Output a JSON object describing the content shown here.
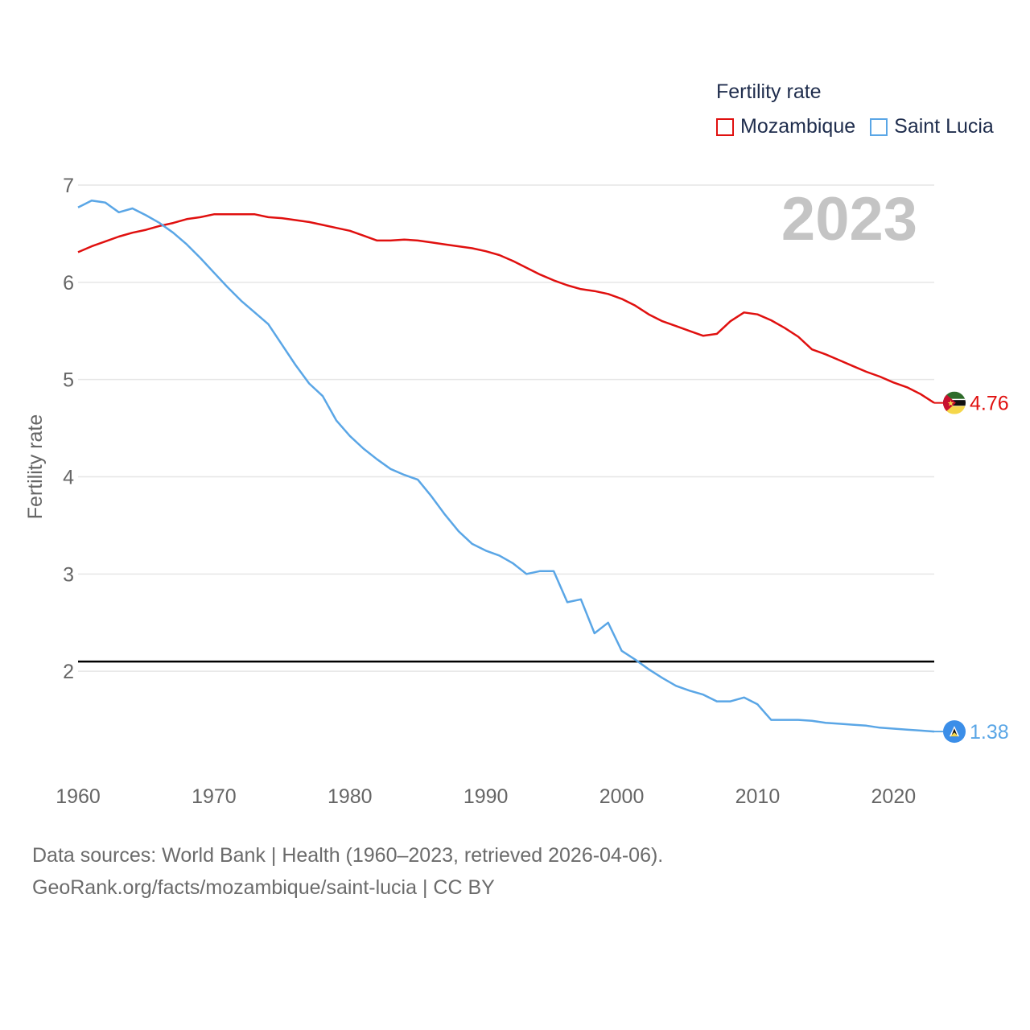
{
  "colors": {
    "mozambique": "#e0100f",
    "saint_lucia": "#5aa6e6",
    "reference": "#000000",
    "grid": "#e6e6e6",
    "tick_text": "#666666",
    "year_watermark": "#c4c4c4"
  },
  "legend": {
    "title": "Fertility rate",
    "items": [
      "Mozambique",
      "Saint Lucia"
    ]
  },
  "year_watermark": "2023",
  "footer": {
    "line1": "Data sources: World Bank | Health (1960–2023, retrieved 2026-04-06).",
    "line2": "GeoRank.org/facts/mozambique/saint-lucia | CC BY"
  },
  "chart_data": {
    "type": "line",
    "title": "",
    "xlabel": "",
    "ylabel": "Fertility rate",
    "xlim": [
      1960,
      2023
    ],
    "ylim": [
      1,
      7
    ],
    "x_ticks": [
      1960,
      1970,
      1980,
      1990,
      2000,
      2010,
      2020
    ],
    "y_ticks": [
      2,
      3,
      4,
      5,
      6,
      7
    ],
    "reference_line": 2.1,
    "x": [
      1960,
      1961,
      1962,
      1963,
      1964,
      1965,
      1966,
      1967,
      1968,
      1969,
      1970,
      1971,
      1972,
      1973,
      1974,
      1975,
      1976,
      1977,
      1978,
      1979,
      1980,
      1981,
      1982,
      1983,
      1984,
      1985,
      1986,
      1987,
      1988,
      1989,
      1990,
      1991,
      1992,
      1993,
      1994,
      1995,
      1996,
      1997,
      1998,
      1999,
      2000,
      2001,
      2002,
      2003,
      2004,
      2005,
      2006,
      2007,
      2008,
      2009,
      2010,
      2011,
      2012,
      2013,
      2014,
      2015,
      2016,
      2017,
      2018,
      2019,
      2020,
      2021,
      2022,
      2023
    ],
    "series": [
      {
        "name": "Mozambique",
        "end_label": "4.76",
        "flag_icon": "mozambique-flag-icon",
        "values": [
          6.31,
          6.37,
          6.42,
          6.47,
          6.51,
          6.54,
          6.58,
          6.61,
          6.65,
          6.67,
          6.7,
          6.7,
          6.7,
          6.7,
          6.67,
          6.66,
          6.64,
          6.62,
          6.59,
          6.56,
          6.53,
          6.48,
          6.43,
          6.43,
          6.44,
          6.43,
          6.41,
          6.39,
          6.37,
          6.35,
          6.32,
          6.28,
          6.22,
          6.15,
          6.08,
          6.02,
          5.97,
          5.93,
          5.91,
          5.88,
          5.83,
          5.76,
          5.67,
          5.6,
          5.55,
          5.5,
          5.45,
          5.47,
          5.6,
          5.69,
          5.67,
          5.61,
          5.53,
          5.44,
          5.31,
          5.26,
          5.2,
          5.14,
          5.08,
          5.03,
          4.97,
          4.92,
          4.85,
          4.76
        ]
      },
      {
        "name": "Saint Lucia",
        "end_label": "1.38",
        "flag_icon": "saint-lucia-flag-icon",
        "values": [
          6.77,
          6.84,
          6.82,
          6.72,
          6.76,
          6.69,
          6.61,
          6.51,
          6.39,
          6.25,
          6.1,
          5.95,
          5.81,
          5.69,
          5.57,
          5.36,
          5.15,
          4.96,
          4.83,
          4.58,
          4.42,
          4.29,
          4.18,
          4.08,
          4.02,
          3.97,
          3.8,
          3.61,
          3.44,
          3.31,
          3.24,
          3.19,
          3.11,
          3.0,
          3.03,
          3.03,
          2.71,
          2.74,
          2.39,
          2.5,
          2.21,
          2.12,
          2.02,
          1.93,
          1.85,
          1.8,
          1.76,
          1.69,
          1.69,
          1.73,
          1.66,
          1.5,
          1.5,
          1.5,
          1.49,
          1.47,
          1.46,
          1.45,
          1.44,
          1.42,
          1.41,
          1.4,
          1.39,
          1.38
        ]
      }
    ]
  }
}
